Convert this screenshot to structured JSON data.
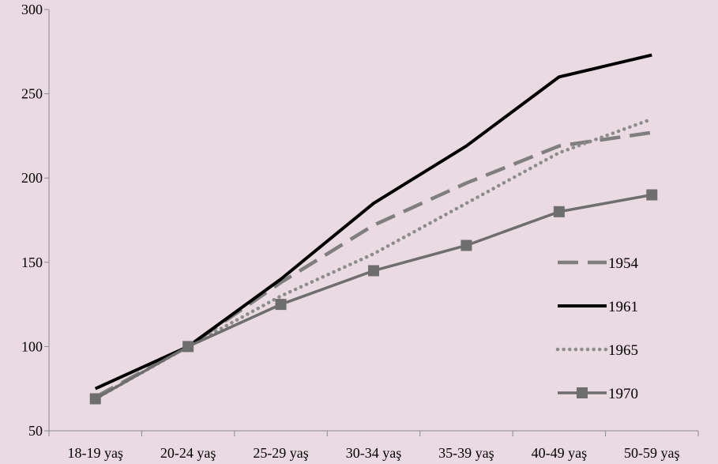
{
  "chart_data": {
    "type": "line",
    "title": "",
    "xlabel": "",
    "ylabel": "",
    "categories": [
      "18-19 yaş",
      "20-24 yaş",
      "25-29 yaş",
      "30-34 yaş",
      "35-39 yaş",
      "40-49 yaş",
      "50-59 yaş"
    ],
    "ylim": [
      50,
      300
    ],
    "yticks": [
      50,
      100,
      150,
      200,
      250,
      300
    ],
    "grid": false,
    "legend": "right",
    "series": [
      {
        "name": "1954",
        "values": [
          70,
          100,
          138,
          172,
          197,
          219,
          227
        ],
        "color": "#7f7f7f",
        "style": "dashed",
        "marker": "none"
      },
      {
        "name": "1961",
        "values": [
          75,
          100,
          140,
          185,
          219,
          260,
          273
        ],
        "color": "#000000",
        "style": "solid",
        "marker": "none"
      },
      {
        "name": "1965",
        "values": [
          69,
          100,
          130,
          155,
          185,
          215,
          235
        ],
        "color": "#8c8c8c",
        "style": "dotted",
        "marker": "none"
      },
      {
        "name": "1970",
        "values": [
          69,
          100,
          125,
          145,
          160,
          180,
          190
        ],
        "color": "#6e6e6e",
        "style": "solid",
        "marker": "square"
      }
    ]
  }
}
